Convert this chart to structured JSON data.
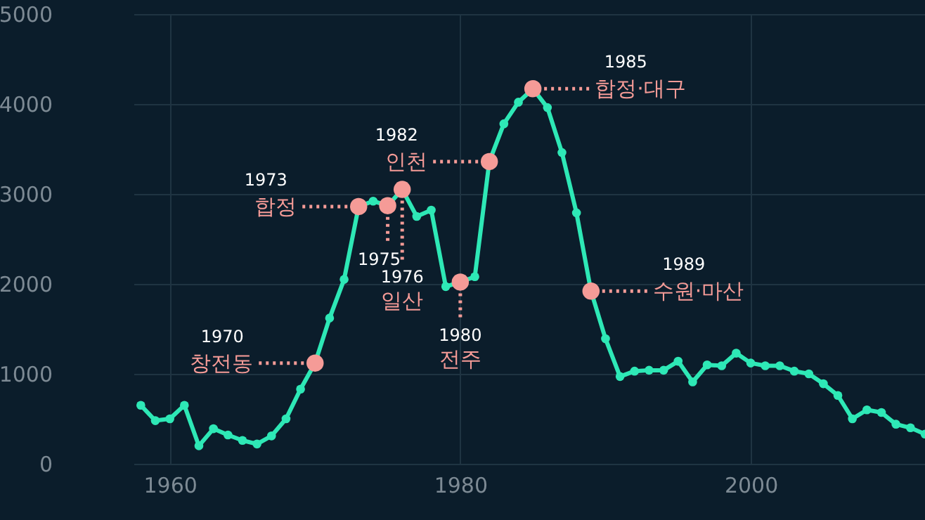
{
  "chart_data": {
    "type": "line",
    "color": "#2ee8b6",
    "marker": "circle",
    "grid": true,
    "x": [
      1958,
      1959,
      1960,
      1961,
      1962,
      1963,
      1964,
      1965,
      1966,
      1967,
      1968,
      1969,
      1970,
      1971,
      1972,
      1973,
      1974,
      1975,
      1976,
      1977,
      1978,
      1979,
      1980,
      1981,
      1982,
      1983,
      1984,
      1985,
      1986,
      1987,
      1988,
      1989,
      1990,
      1991,
      1992,
      1993,
      1994,
      1995,
      1996,
      1997,
      1998,
      1999,
      2000,
      2001,
      2002,
      2003,
      2004,
      2005,
      2006,
      2007,
      2008,
      2009,
      2010,
      2011,
      2012
    ],
    "values": [
      650,
      480,
      500,
      650,
      200,
      390,
      320,
      260,
      220,
      310,
      500,
      830,
      1120,
      1620,
      2050,
      2860,
      2920,
      2870,
      3050,
      2750,
      2820,
      1970,
      2020,
      2080,
      3360,
      3780,
      4020,
      4170,
      3960,
      3460,
      2790,
      1920,
      1390,
      970,
      1030,
      1040,
      1040,
      1140,
      910,
      1100,
      1090,
      1230,
      1120,
      1090,
      1090,
      1030,
      1000,
      890,
      760,
      500,
      600,
      570,
      440,
      400,
      330
    ],
    "colors": [
      "#2ee8b6",
      "#2ee8b6",
      "#2ee8b6",
      "#2ee8b6",
      "#2ee8b6",
      "#2ee8b6",
      "#2ee8b6",
      "#2ee8b6",
      "#2ee8b6",
      "#2ee8b6",
      "#2ee8b6",
      "#2ee8b6",
      "#f59b97",
      "#2ee8b6",
      "#2ee8b6",
      "#f59b97",
      "#2ee8b6",
      "#f59b97",
      "#f59b97",
      "#2ee8b6",
      "#2ee8b6",
      "#2ee8b6",
      "#f59b97",
      "#2ee8b6",
      "#f59b97",
      "#2ee8b6",
      "#2ee8b6",
      "#f59b97",
      "#2ee8b6",
      "#2ee8b6",
      "#2ee8b6",
      "#f59b97",
      "#2ee8b6",
      "#2ee8b6",
      "#2ee8b6",
      "#2ee8b6",
      "#2ee8b6",
      "#2ee8b6",
      "#2ee8b6",
      "#2ee8b6",
      "#2ee8b6",
      "#2ee8b6",
      "#2ee8b6",
      "#2ee8b6",
      "#2ee8b6",
      "#2ee8b6",
      "#2ee8b6",
      "#2ee8b6",
      "#2ee8b6",
      "#2ee8b6",
      "#2ee8b6",
      "#2ee8b6",
      "#2ee8b6",
      "#2ee8b6",
      "#2ee8b6"
    ],
    "xlim": [
      1957.5,
      2012
    ],
    "ylim": [
      0,
      5000
    ],
    "xticks": [
      1960,
      1980,
      2000
    ],
    "yticks": [
      0,
      1000,
      2000,
      3000,
      4000,
      5000
    ],
    "annotations": [
      "1970",
      {
        "text": "창전동",
        "x": 1970,
        "y": 1120
      },
      "1973",
      {
        "text": "합정",
        "x": 1973,
        "y": 2860
      },
      {
        "text": "1975",
        "x": 1975,
        "y": 2870
      },
      {
        "text": "1976",
        "x": 1976,
        "y": 3050
      },
      "일산",
      {
        "text": "1980",
        "x": 1980,
        "y": 2020
      },
      "전주",
      "1982",
      {
        "text": "인천",
        "x": 1982,
        "y": 3360
      },
      "1985",
      {
        "text": "합정·대구",
        "x": 1985,
        "y": 4170
      },
      "1989",
      {
        "text": "수원·마산",
        "x": 1989,
        "y": 1920
      }
    ]
  }
}
